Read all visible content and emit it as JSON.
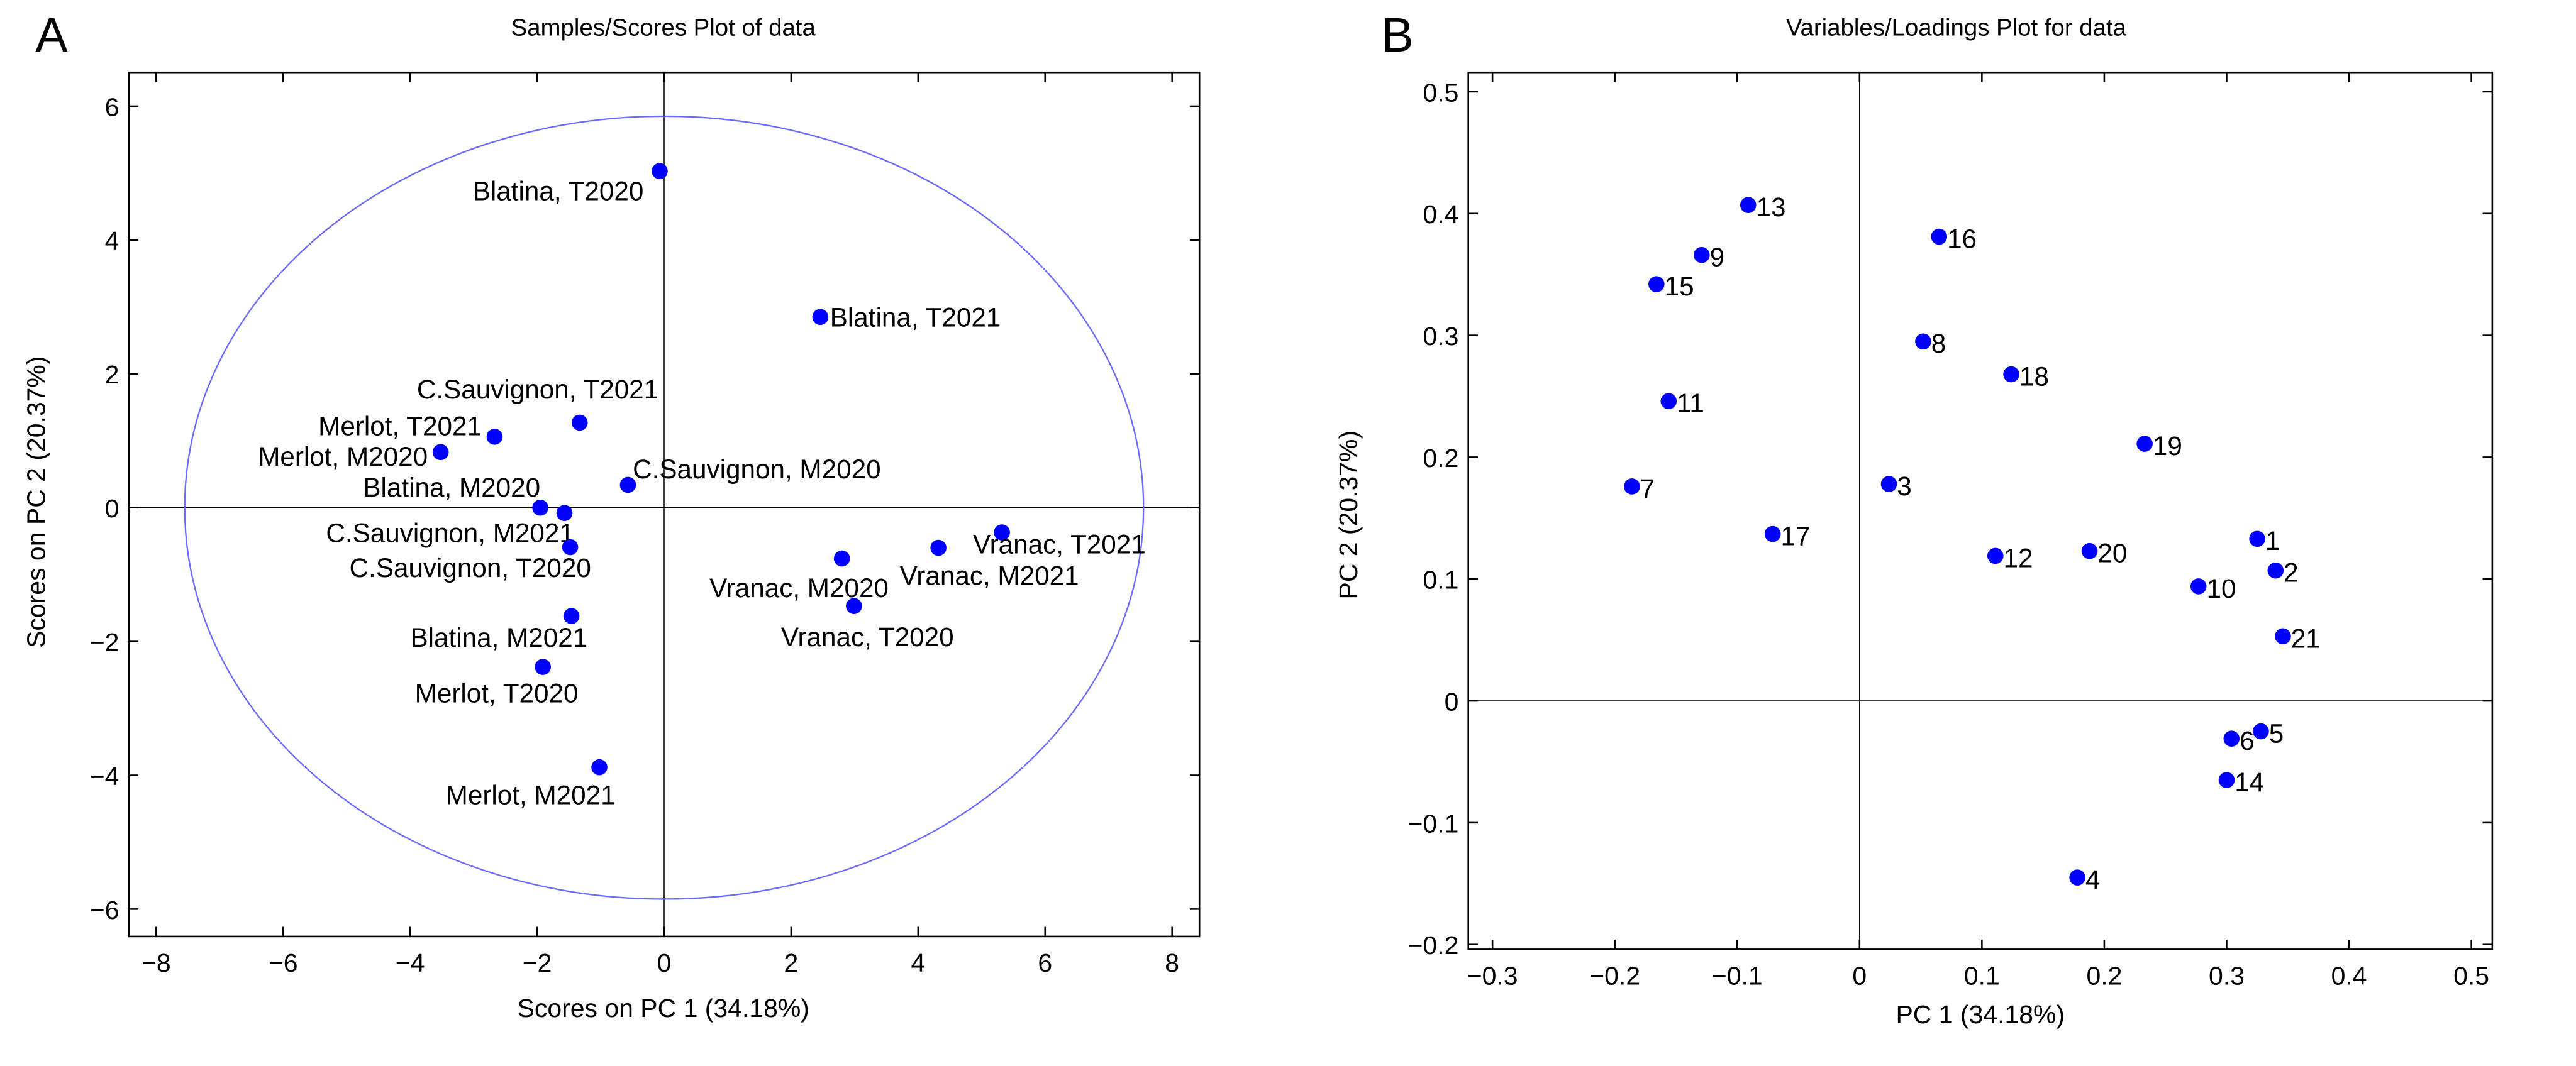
{
  "chart_data": [
    {
      "type": "scatter",
      "panel_label": "A",
      "title": "Samples/Scores Plot of data",
      "xlabel": "Scores on PC 1 (34.18%)",
      "ylabel": "Scores on PC 2 (20.37%)",
      "xlim": [
        -8.4,
        8.4
      ],
      "ylim": [
        -6.5,
        6.4
      ],
      "xticks": [
        -8,
        -6,
        -4,
        -2,
        0,
        2,
        4,
        6,
        8
      ],
      "yticks": [
        -6,
        -4,
        -2,
        0,
        2,
        4,
        6
      ],
      "tick_labels_x": [
        "−8",
        "−6",
        "−4",
        "−2",
        "0",
        "2",
        "4",
        "6",
        "8"
      ],
      "tick_labels_y": [
        "−6",
        "−4",
        "−2",
        "0",
        "2",
        "4",
        "6"
      ],
      "confidence_ellipse": {
        "cx": 0,
        "cy": 0,
        "rx": 7.55,
        "ry": 5.85,
        "color": "#6b6bff"
      },
      "marker_color": "#0000ff",
      "points": [
        {
          "label": "Blatina, T2020",
          "x": -0.07,
          "y": 5.03
        },
        {
          "label": "Blatina, T2021",
          "x": 2.46,
          "y": 2.85
        },
        {
          "label": "C.Sauvignon, T2021",
          "x": -1.33,
          "y": 1.27
        },
        {
          "label": "Merlot, T2021",
          "x": -2.67,
          "y": 1.06
        },
        {
          "label": "Merlot, M2020",
          "x": -3.52,
          "y": 0.83
        },
        {
          "label": "C.Sauvignon, M2020",
          "x": -0.57,
          "y": 0.34
        },
        {
          "label": "Blatina, M2020",
          "x": -1.95,
          "y": 0.0
        },
        {
          "label": "C.Sauvignon, M2021",
          "x": -1.57,
          "y": -0.08
        },
        {
          "label": "C.Sauvignon, T2020",
          "x": -1.48,
          "y": -0.59
        },
        {
          "label": "Vranac, M2020",
          "x": 2.8,
          "y": -0.76
        },
        {
          "label": "Vranac, T2020",
          "x": 2.99,
          "y": -1.47
        },
        {
          "label": "Vranac, M2021",
          "x": 4.32,
          "y": -0.6
        },
        {
          "label": "Vranac, T2021",
          "x": 5.32,
          "y": -0.37
        },
        {
          "label": "Blatina, M2021",
          "x": -1.46,
          "y": -1.62
        },
        {
          "label": "Merlot, T2020",
          "x": -1.91,
          "y": -2.38
        },
        {
          "label": "Merlot, M2021",
          "x": -1.02,
          "y": -3.88
        }
      ]
    },
    {
      "type": "scatter",
      "panel_label": "B",
      "title": "Variables/Loadings Plot for data",
      "xlabel": "PC 1 (34.18%)",
      "ylabel": "PC 2 (20.37%)",
      "xlim": [
        -0.36,
        0.52
      ],
      "ylim": [
        -0.2,
        0.5
      ],
      "xticks": [
        -0.3,
        -0.2,
        -0.1,
        0,
        0.1,
        0.2,
        0.3,
        0.4,
        0.5
      ],
      "yticks": [
        -0.2,
        -0.1,
        0,
        0.1,
        0.2,
        0.3,
        0.4,
        0.5
      ],
      "tick_labels_x": [
        "−0.3",
        "−0.2",
        "−0.1",
        "0",
        "0.1",
        "0.2",
        "0.3",
        "0.4",
        "0.5"
      ],
      "tick_labels_y": [
        "−0.2",
        "−0.1",
        "0",
        "0.1",
        "0.2",
        "0.3",
        "0.4",
        "0.5"
      ],
      "marker_color": "#0000ff",
      "points": [
        {
          "label": "1",
          "x": 0.325,
          "y": 0.133
        },
        {
          "label": "2",
          "x": 0.34,
          "y": 0.107
        },
        {
          "label": "3",
          "x": 0.024,
          "y": 0.178
        },
        {
          "label": "4",
          "x": 0.178,
          "y": -0.145
        },
        {
          "label": "5",
          "x": 0.328,
          "y": -0.025
        },
        {
          "label": "6",
          "x": 0.304,
          "y": -0.031
        },
        {
          "label": "7",
          "x": -0.186,
          "y": 0.176
        },
        {
          "label": "8",
          "x": 0.052,
          "y": 0.295
        },
        {
          "label": "9",
          "x": -0.129,
          "y": 0.366
        },
        {
          "label": "10",
          "x": 0.277,
          "y": 0.094
        },
        {
          "label": "11",
          "x": -0.156,
          "y": 0.246
        },
        {
          "label": "12",
          "x": 0.111,
          "y": 0.119
        },
        {
          "label": "13",
          "x": -0.091,
          "y": 0.407
        },
        {
          "label": "14",
          "x": 0.3,
          "y": -0.065
        },
        {
          "label": "15",
          "x": -0.166,
          "y": 0.342
        },
        {
          "label": "16",
          "x": 0.065,
          "y": 0.381
        },
        {
          "label": "17",
          "x": -0.071,
          "y": 0.137
        },
        {
          "label": "18",
          "x": 0.124,
          "y": 0.268
        },
        {
          "label": "19",
          "x": 0.233,
          "y": 0.211
        },
        {
          "label": "20",
          "x": 0.188,
          "y": 0.123
        },
        {
          "label": "21",
          "x": 0.346,
          "y": 0.053
        }
      ]
    }
  ]
}
